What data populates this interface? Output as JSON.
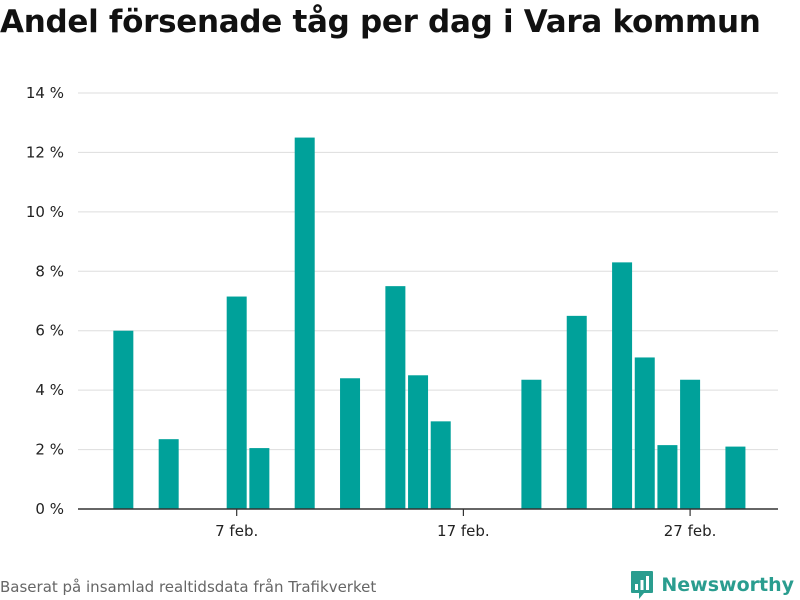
{
  "title": "Andel försenade tåg per dag i Vara kommun",
  "source": "Baserat på insamlad realtidsdata från Trafikverket",
  "brand": {
    "name": "Newsworthy",
    "color": "#2a9d8f"
  },
  "chart_data": {
    "type": "bar",
    "title": "Andel försenade tåg per dag i Vara kommun",
    "xlabel": "",
    "ylabel": "",
    "bar_color": "#00a19a",
    "grid": true,
    "ylim": [
      0,
      14
    ],
    "y_ticks": [
      0,
      2,
      4,
      6,
      8,
      10,
      12,
      14
    ],
    "y_tick_labels": [
      "0 %",
      "2 %",
      "4 %",
      "6 %",
      "8 %",
      "10 %",
      "12 %",
      "14 %"
    ],
    "x_ticks": [
      7,
      17,
      27
    ],
    "x_tick_labels": [
      "7 feb.",
      "17 feb.",
      "27 feb."
    ],
    "x_range": [
      0,
      30
    ],
    "x": [
      2,
      4,
      7,
      8,
      10,
      12,
      14,
      15,
      16,
      20,
      22,
      24,
      25,
      26,
      27,
      29
    ],
    "values": [
      6.0,
      2.35,
      7.15,
      2.05,
      12.5,
      4.4,
      7.5,
      4.5,
      2.95,
      4.35,
      6.5,
      8.3,
      5.1,
      2.15,
      4.35,
      2.1
    ]
  }
}
